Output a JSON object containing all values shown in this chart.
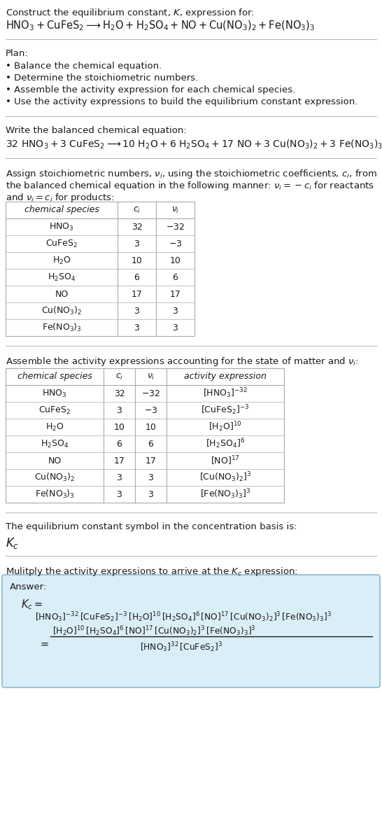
{
  "title_line1": "Construct the equilibrium constant, $K$, expression for:",
  "title_line2": "$\\mathrm{HNO_3 + CuFeS_2 \\longrightarrow H_2O + H_2SO_4 + NO + Cu(NO_3)_2 + Fe(NO_3)_3}$",
  "plan_header": "Plan:",
  "plan_items": [
    "Balance the chemical equation.",
    "Determine the stoichiometric numbers.",
    "Assemble the activity expression for each chemical species.",
    "Use the activity expressions to build the equilibrium constant expression."
  ],
  "balanced_header": "Write the balanced chemical equation:",
  "balanced_eq": "$32\\ \\mathrm{HNO_3} + 3\\ \\mathrm{CuFeS_2} \\longrightarrow 10\\ \\mathrm{H_2O} + 6\\ \\mathrm{H_2SO_4} + 17\\ \\mathrm{NO} + 3\\ \\mathrm{Cu(NO_3)_2} + 3\\ \\mathrm{Fe(NO_3)_3}$",
  "table1_cols": [
    "chemical species",
    "$c_i$",
    "$\\nu_i$"
  ],
  "table1_rows": [
    [
      "$\\mathrm{HNO_3}$",
      "32",
      "$-32$"
    ],
    [
      "$\\mathrm{CuFeS_2}$",
      "3",
      "$-3$"
    ],
    [
      "$\\mathrm{H_2O}$",
      "10",
      "10"
    ],
    [
      "$\\mathrm{H_2SO_4}$",
      "6",
      "6"
    ],
    [
      "NO",
      "17",
      "17"
    ],
    [
      "$\\mathrm{Cu(NO_3)_2}$",
      "3",
      "3"
    ],
    [
      "$\\mathrm{Fe(NO_3)_3}$",
      "3",
      "3"
    ]
  ],
  "table2_cols": [
    "chemical species",
    "$c_i$",
    "$\\nu_i$",
    "activity expression"
  ],
  "table2_rows": [
    [
      "$\\mathrm{HNO_3}$",
      "32",
      "$-32$",
      "$[\\mathrm{HNO_3}]^{-32}$"
    ],
    [
      "$\\mathrm{CuFeS_2}$",
      "3",
      "$-3$",
      "$[\\mathrm{CuFeS_2}]^{-3}$"
    ],
    [
      "$\\mathrm{H_2O}$",
      "10",
      "10",
      "$[\\mathrm{H_2O}]^{10}$"
    ],
    [
      "$\\mathrm{H_2SO_4}$",
      "6",
      "6",
      "$[\\mathrm{H_2SO_4}]^{6}$"
    ],
    [
      "NO",
      "17",
      "17",
      "$[\\mathrm{NO}]^{17}$"
    ],
    [
      "$\\mathrm{Cu(NO_3)_2}$",
      "3",
      "3",
      "$[\\mathrm{Cu(NO_3)_2}]^{3}$"
    ],
    [
      "$\\mathrm{Fe(NO_3)_3}$",
      "3",
      "3",
      "$[\\mathrm{Fe(NO_3)_3}]^{3}$"
    ]
  ],
  "kc_header": "The equilibrium constant symbol in the concentration basis is:",
  "kc_symbol": "$K_c$",
  "multiply_header": "Mulitply the activity expressions to arrive at the $K_c$ expression:",
  "answer_label": "Answer:",
  "bg_color": "#ffffff",
  "table_border_color": "#aaaaaa",
  "answer_box_color": "#daeef8",
  "answer_box_border": "#88bbd8",
  "text_color": "#1a1a1a",
  "divider_color": "#bbbbbb"
}
